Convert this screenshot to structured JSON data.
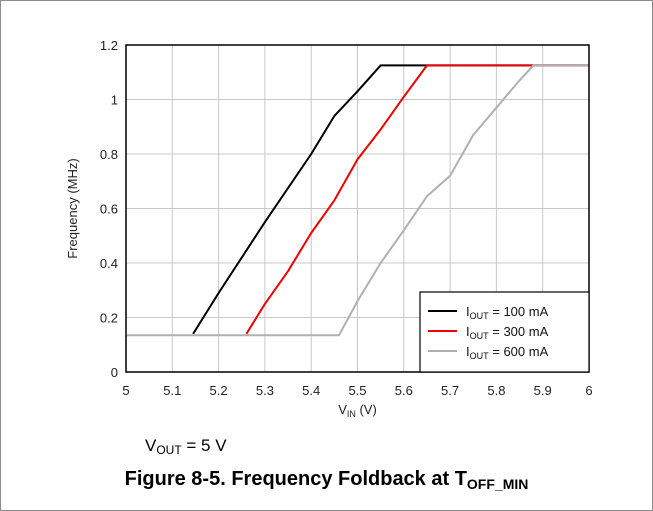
{
  "chart_data": {
    "type": "line",
    "xlabel": "V",
    "xlabel_sub": "IN",
    "xlabel_unit": " (V)",
    "ylabel": "Frequency (MHz)",
    "xlim": [
      5,
      6
    ],
    "ylim": [
      0,
      1.2
    ],
    "xticks": [
      "5",
      "5.1",
      "5.2",
      "5.3",
      "5.4",
      "5.5",
      "5.6",
      "5.7",
      "5.8",
      "5.9",
      "6"
    ],
    "yticks": [
      "0",
      "0.2",
      "0.4",
      "0.6",
      "0.8",
      "1",
      "1.2"
    ],
    "grid": true,
    "legend_position": "bottom-right",
    "series": [
      {
        "name_main": "I",
        "name_sub": "OUT",
        "name_rest": " = 100 mA",
        "color": "#000000",
        "x": [
          5.145,
          5.2,
          5.3,
          5.4,
          5.45,
          5.5,
          5.55,
          5.6,
          5.7,
          5.8,
          5.9,
          6.0
        ],
        "y": [
          0.14,
          0.29,
          0.55,
          0.8,
          0.94,
          1.03,
          1.125,
          1.125,
          1.125,
          1.125,
          1.125,
          1.125
        ]
      },
      {
        "name_main": "I",
        "name_sub": "OUT",
        "name_rest": " = 300 mA",
        "color": "#ee0000",
        "x": [
          5.26,
          5.3,
          5.35,
          5.4,
          5.45,
          5.5,
          5.55,
          5.6,
          5.65,
          5.7,
          5.8,
          5.9,
          6.0
        ],
        "y": [
          0.14,
          0.25,
          0.37,
          0.51,
          0.63,
          0.78,
          0.89,
          1.01,
          1.125,
          1.125,
          1.125,
          1.125,
          1.125
        ]
      },
      {
        "name_main": "I",
        "name_sub": "OUT",
        "name_rest": " = 600 mA",
        "color": "#b0b0b0",
        "x": [
          5.0,
          5.1,
          5.2,
          5.3,
          5.4,
          5.46,
          5.5,
          5.55,
          5.6,
          5.65,
          5.7,
          5.75,
          5.8,
          5.85,
          5.88,
          5.9,
          6.0
        ],
        "y": [
          0.135,
          0.135,
          0.135,
          0.135,
          0.135,
          0.135,
          0.26,
          0.4,
          0.52,
          0.645,
          0.72,
          0.87,
          0.97,
          1.07,
          1.125,
          1.125,
          1.125
        ]
      }
    ]
  },
  "note": {
    "main": "V",
    "sub": "OUT",
    "rest": " = 5 V"
  },
  "caption": {
    "main": "Figure 8-5. Frequency Foldback at T",
    "sub": "OFF_MIN"
  }
}
